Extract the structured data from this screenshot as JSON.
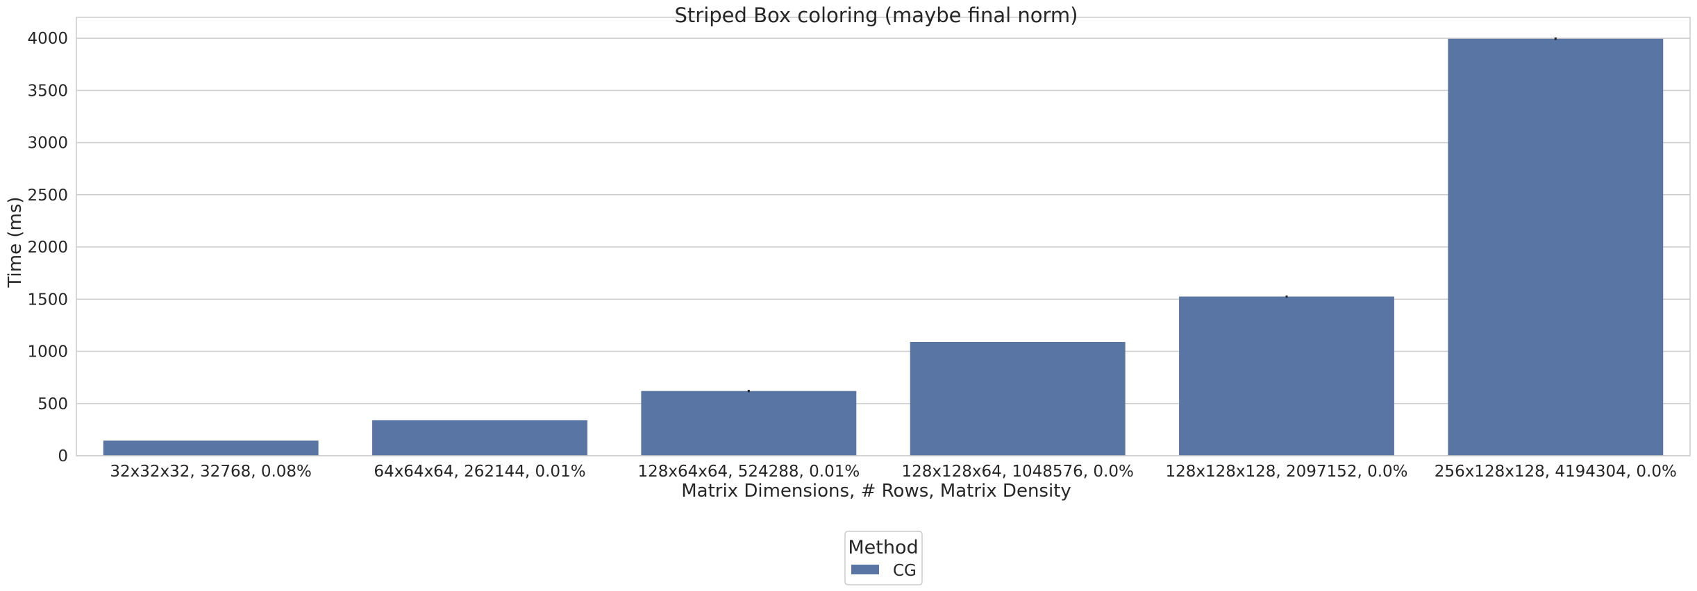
{
  "chart_data": {
    "type": "bar",
    "title": "Striped Box coloring (maybe final norm)",
    "xlabel": "Matrix Dimensions, # Rows, Matrix Density",
    "ylabel": "Time (ms)",
    "categories": [
      "32x32x32, 32768, 0.08%",
      "64x64x64, 262144, 0.01%",
      "128x64x64, 524288, 0.01%",
      "128x128x64, 1048576, 0.0%",
      "128x128x128, 2097152, 0.0%",
      "256x128x128, 4194304, 0.0%"
    ],
    "series": [
      {
        "name": "CG",
        "values": [
          145,
          340,
          620,
          1090,
          1525,
          3995
        ],
        "error": [
          0,
          0,
          12,
          0,
          10,
          12
        ]
      }
    ],
    "ylim": [
      0,
      4200
    ],
    "yticks": [
      0,
      500,
      1000,
      1500,
      2000,
      2500,
      3000,
      3500,
      4000
    ],
    "grid": true,
    "legend": {
      "title": "Method",
      "position": "bottom-center"
    },
    "colors": {
      "bar": "#5975a4",
      "grid": "#cccccc",
      "axis": "#cccccc",
      "text": "#262626",
      "error": "#262626"
    }
  }
}
